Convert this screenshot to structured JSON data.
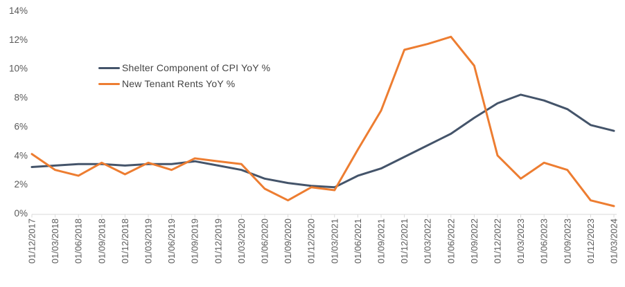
{
  "chart_data": {
    "type": "line",
    "title": "",
    "xlabel": "",
    "ylabel": "",
    "grid": false,
    "legend_position": "inside-top-left",
    "axis_line_color": "#D9D9D9",
    "tick_label_color": "#595959",
    "ylim": [
      0,
      14
    ],
    "ytick_step": 2,
    "ytick_labels": [
      "0%",
      "2%",
      "4%",
      "6%",
      "8%",
      "10%",
      "12%",
      "14%"
    ],
    "categories": [
      "01/12/2017",
      "01/03/2018",
      "01/06/2018",
      "01/09/2018",
      "01/12/2018",
      "01/03/2019",
      "01/06/2019",
      "01/09/2019",
      "01/12/2019",
      "01/03/2020",
      "01/06/2020",
      "01/09/2020",
      "01/12/2020",
      "01/03/2021",
      "01/06/2021",
      "01/09/2021",
      "01/12/2021",
      "01/03/2022",
      "01/06/2022",
      "01/09/2022",
      "01/12/2022",
      "01/03/2023",
      "01/06/2023",
      "01/09/2023",
      "01/12/2023",
      "01/03/2024"
    ],
    "series": [
      {
        "name": "Shelter Component of CPI YoY %",
        "color": "#44546A",
        "values": [
          3.2,
          3.3,
          3.4,
          3.4,
          3.3,
          3.4,
          3.4,
          3.6,
          3.3,
          3.0,
          2.4,
          2.1,
          1.9,
          1.8,
          2.6,
          3.1,
          3.9,
          4.7,
          5.5,
          6.6,
          7.6,
          8.2,
          7.8,
          7.2,
          6.1,
          5.7
        ]
      },
      {
        "name": "New Tenant Rents YoY %",
        "color": "#ED7D31",
        "values": [
          4.1,
          3.0,
          2.6,
          3.5,
          2.7,
          3.5,
          3.0,
          3.8,
          3.6,
          3.4,
          1.7,
          0.9,
          1.8,
          1.6,
          4.4,
          7.1,
          11.3,
          11.7,
          12.2,
          10.2,
          4.0,
          2.4,
          3.5,
          3.0,
          0.9,
          0.5
        ]
      }
    ]
  }
}
